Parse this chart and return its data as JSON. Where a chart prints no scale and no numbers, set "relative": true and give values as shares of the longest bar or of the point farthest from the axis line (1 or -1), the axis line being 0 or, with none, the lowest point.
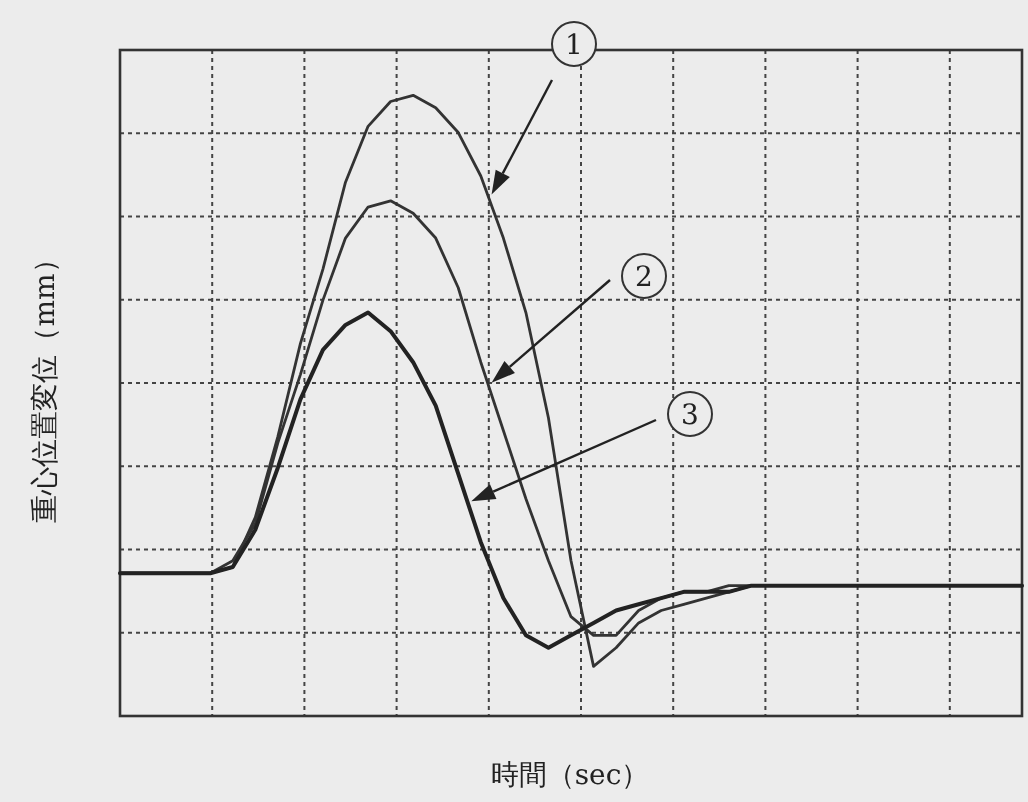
{
  "chart_data": {
    "type": "line",
    "relative": true,
    "xlabel": "時間（sec）",
    "ylabel": "重心位置変位（mm）",
    "grid": true,
    "marker": "none",
    "line_style": "solid",
    "annotations": [
      "1",
      "2",
      "3"
    ],
    "categories": [
      null,
      null,
      null,
      null,
      null,
      null,
      null,
      null,
      null,
      null,
      null,
      null,
      null,
      null,
      null,
      null,
      null,
      null,
      null,
      null,
      null,
      null,
      null,
      null,
      null,
      null,
      null,
      null,
      null,
      null,
      null,
      null,
      null,
      null,
      null,
      null,
      null,
      null,
      null,
      null,
      null
    ],
    "series": [
      {
        "color": "#333333",
        "values": [
          0.23,
          0.23,
          0.23,
          0.23,
          0.23,
          0.24,
          0.32,
          0.45,
          0.6,
          0.72,
          0.86,
          0.95,
          0.99,
          1.0,
          0.98,
          0.94,
          0.87,
          0.77,
          0.65,
          0.48,
          0.25,
          0.08,
          0.11,
          0.15,
          0.17,
          0.18,
          0.19,
          0.2,
          0.21,
          0.21,
          0.21,
          0.21,
          0.21,
          0.21,
          0.21,
          0.21,
          0.21,
          0.21,
          0.21,
          0.21,
          0.21
        ]
      },
      {
        "color": "#333333",
        "values": [
          0.23,
          0.23,
          0.23,
          0.23,
          0.23,
          0.25,
          0.31,
          0.44,
          0.55,
          0.67,
          0.77,
          0.82,
          0.83,
          0.81,
          0.77,
          0.69,
          0.57,
          0.46,
          0.35,
          0.25,
          0.16,
          0.13,
          0.13,
          0.17,
          0.19,
          0.2,
          0.2,
          0.21,
          0.21,
          0.21,
          0.21,
          0.21,
          0.21,
          0.21,
          0.21,
          0.21,
          0.21,
          0.21,
          0.21,
          0.21,
          0.21
        ]
      },
      {
        "color": "#222222",
        "values": [
          0.23,
          0.23,
          0.23,
          0.23,
          0.23,
          0.24,
          0.3,
          0.4,
          0.51,
          0.59,
          0.63,
          0.65,
          0.62,
          0.57,
          0.5,
          0.39,
          0.28,
          0.19,
          0.13,
          0.11,
          0.13,
          0.15,
          0.17,
          0.18,
          0.19,
          0.2,
          0.2,
          0.2,
          0.21,
          0.21,
          0.21,
          0.21,
          0.21,
          0.21,
          0.21,
          0.21,
          0.21,
          0.21,
          0.21,
          0.21,
          0.21
        ]
      }
    ]
  }
}
